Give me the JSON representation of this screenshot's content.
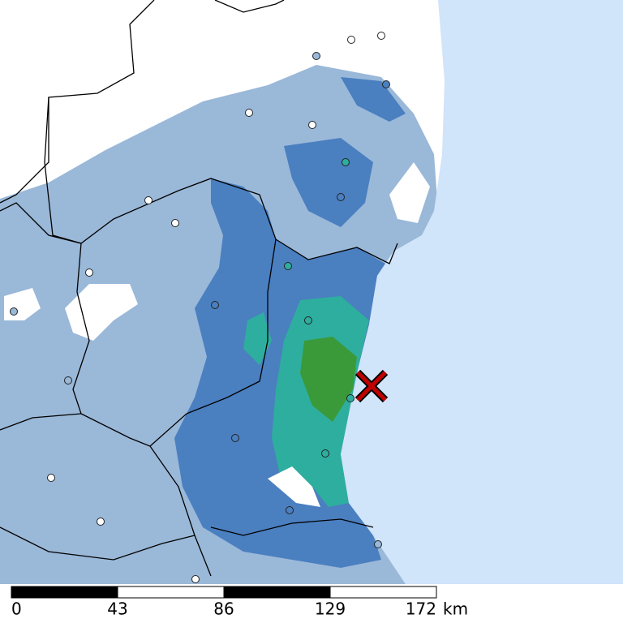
{
  "scale_bar": {
    "labels": [
      "0",
      "43",
      "86",
      "129",
      "172"
    ],
    "unit": "km"
  }
}
